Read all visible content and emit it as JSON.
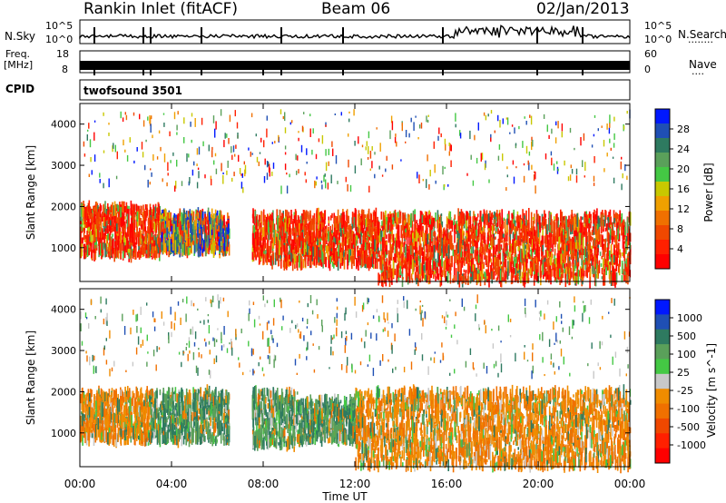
{
  "header": {
    "site": "Rankin Inlet (fitACF)",
    "beam": "Beam 06",
    "date": "02/Jan/2013"
  },
  "aux_panels": {
    "nsky_label": "N.Sky",
    "nsearch_label": "N.Search",
    "nsearch_marker": "........",
    "noise_left_ticks": [
      "10^5",
      "10^0"
    ],
    "noise_right_ticks": [
      "10^5",
      "10^0"
    ],
    "freq_label": "Freq.",
    "freq_unit": "[MHz]",
    "freq_ticks": [
      "18",
      "8"
    ],
    "nave_label": "Nave",
    "nave_marker": "....",
    "nave_ticks": [
      "60",
      "0"
    ],
    "cpid_label": "CPID",
    "cpid_value": "twofsound 3501"
  },
  "colors": {
    "power_scale": [
      "#0018ff",
      "#1f4fb4",
      "#2e7a60",
      "#5aa05a",
      "#44c844",
      "#c8c800",
      "#f0a000",
      "#f07000",
      "#f04800",
      "#ff2000",
      "#ff0000"
    ],
    "velocity_scale": [
      "#0018ff",
      "#1f4fb4",
      "#2e7a60",
      "#5aa05a",
      "#44c844",
      "#c8c8c8",
      "#f08c00",
      "#f07000",
      "#f04800",
      "#ff2000",
      "#ff0000"
    ]
  },
  "chart_data": [
    {
      "type": "heatmap",
      "title": "",
      "xlabel": "",
      "ylabel": "Slant Range [km]",
      "xlim": [
        0,
        24
      ],
      "ylim": [
        180,
        4500
      ],
      "yticks": [
        "1000",
        "2000",
        "3000",
        "4000"
      ],
      "colorbar_label": "Power [dB]",
      "colorbar_ticks": [
        "4",
        "8",
        "12",
        "16",
        "20",
        "24",
        "28"
      ],
      "regions": [
        {
          "t": [
            0.0,
            3.5
          ],
          "r": [
            800,
            2000
          ],
          "value": "high"
        },
        {
          "t": [
            3.5,
            6.5
          ],
          "r": [
            900,
            1800
          ],
          "value": "mixed"
        },
        {
          "t": [
            7.5,
            8.1
          ],
          "r": [
            700,
            1800
          ],
          "value": "high"
        },
        {
          "t": [
            8.1,
            13.0
          ],
          "r": [
            600,
            1800
          ],
          "value": "high"
        },
        {
          "t": [
            13.0,
            24.0
          ],
          "r": [
            200,
            1800
          ],
          "value": "high"
        }
      ]
    },
    {
      "type": "heatmap",
      "title": "",
      "xlabel": "Time UT",
      "ylabel": "Slant Range [km]",
      "xlim": [
        0,
        24
      ],
      "ylim": [
        180,
        4500
      ],
      "xticks": [
        "00:00",
        "04:00",
        "08:00",
        "12:00",
        "16:00",
        "20:00",
        "00:00"
      ],
      "yticks": [
        "1000",
        "2000",
        "3000",
        "4000"
      ],
      "colorbar_label": "Velocity [m s^-1]",
      "colorbar_ticks": [
        "1000",
        "500",
        "100",
        "25",
        "-25",
        "-100",
        "-500",
        "-1000"
      ],
      "regions": [
        {
          "t": [
            0.0,
            3.0
          ],
          "r": [
            800,
            2000
          ],
          "value": "negative"
        },
        {
          "t": [
            3.0,
            6.5
          ],
          "r": [
            800,
            2000
          ],
          "value": "positive"
        },
        {
          "t": [
            7.5,
            9.5
          ],
          "r": [
            700,
            2000
          ],
          "value": "positive"
        },
        {
          "t": [
            9.5,
            12.0
          ],
          "r": [
            800,
            1800
          ],
          "value": "positive"
        },
        {
          "t": [
            12.0,
            24.0
          ],
          "r": [
            200,
            2000
          ],
          "value": "negative"
        }
      ]
    }
  ]
}
